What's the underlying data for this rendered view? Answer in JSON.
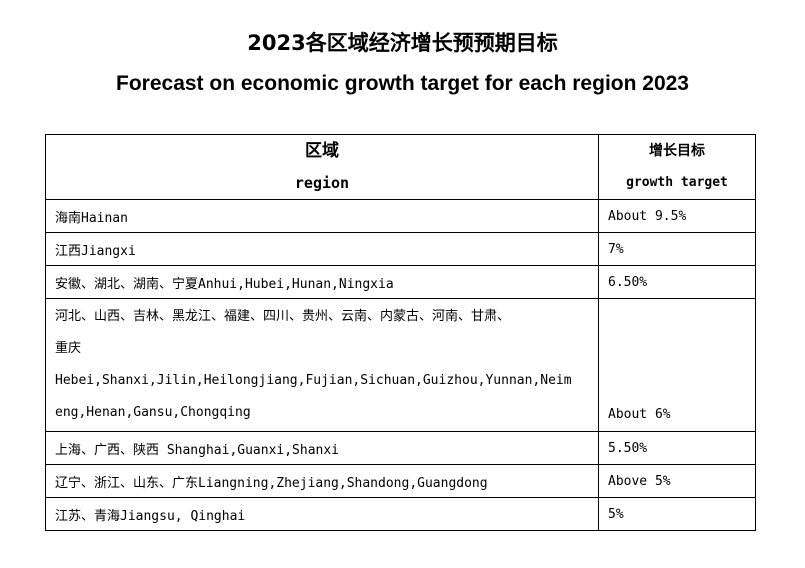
{
  "title_cn": "2023各区域经济增长预预期目标",
  "title_en": "Forecast on economic growth target for each region 2023",
  "header": {
    "region_cn": "区域",
    "region_en": "region",
    "target_cn": "增长目标",
    "target_en": "growth target"
  },
  "rows": [
    {
      "region": "海南Hainan",
      "target": "About 9.5%"
    },
    {
      "region": "江西Jiangxi",
      "target": "7%"
    },
    {
      "region": "安徽、湖北、湖南、宁夏Anhui,Hubei,Hunan,Ningxia",
      "target": "6.50%"
    },
    {
      "region_lines": [
        "河北、山西、吉林、黑龙江、福建、四川、贵州、云南、内蒙古、河南、甘肃、",
        "重庆",
        "Hebei,Shanxi,Jilin,Heilongjiang,Fujian,Sichuan,Guizhou,Yunnan,Neim",
        "eng,Henan,Gansu,Chongqing"
      ],
      "target": "About 6%"
    },
    {
      "region": "上海、广西、陕西 Shanghai,Guanxi,Shanxi",
      "target": "5.50%"
    },
    {
      "region": "辽宁、浙江、山东、广东Liangning,Zhejiang,Shandong,Guangdong",
      "target": "Above 5%"
    },
    {
      "region": "江苏、青海Jiangsu, Qinghai",
      "target": "5%"
    }
  ]
}
